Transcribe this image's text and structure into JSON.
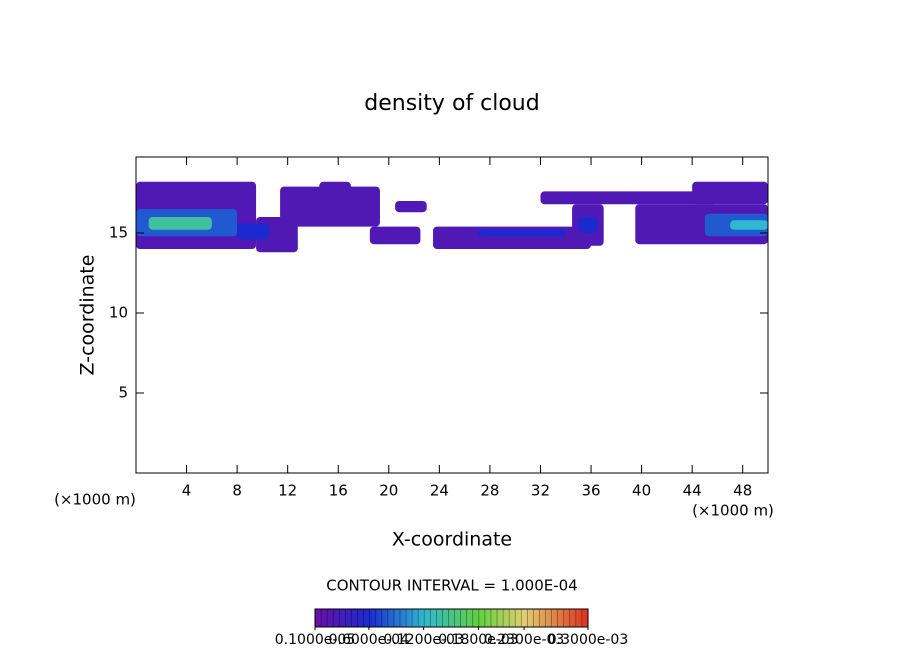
{
  "chart_data": {
    "type": "contour",
    "title": "density of cloud",
    "x_label": "X-coordinate",
    "y_label": "Z-coordinate",
    "x_unit": "(×1000 m)",
    "y_unit": "(×1000 m)",
    "xlim": [
      0,
      50
    ],
    "ylim": [
      0,
      19.75
    ],
    "xticks": [
      4,
      8,
      12,
      16,
      20,
      24,
      28,
      32,
      36,
      40,
      44,
      48
    ],
    "yticks": [
      5,
      10,
      15
    ],
    "contour_interval": "CONTOUR INTERVAL = 1.000E-04",
    "regions": [
      {
        "x": [
          0,
          9.5
        ],
        "z": [
          14,
          18.2
        ],
        "value": 2e-05
      },
      {
        "x": [
          9.5,
          12.8
        ],
        "z": [
          13.8,
          16
        ],
        "value": 2e-05
      },
      {
        "x": [
          11.4,
          19.3
        ],
        "z": [
          15.4,
          17.9
        ],
        "value": 2e-05
      },
      {
        "x": [
          14.5,
          17
        ],
        "z": [
          17.5,
          18.2
        ],
        "value": 2e-05
      },
      {
        "x": [
          18.5,
          22.5
        ],
        "z": [
          14.3,
          15.4
        ],
        "value": 2e-05
      },
      {
        "x": [
          20.5,
          23
        ],
        "z": [
          16.3,
          17
        ],
        "value": 2e-05
      },
      {
        "x": [
          23.5,
          36
        ],
        "z": [
          14,
          15.4
        ],
        "value": 2e-05
      },
      {
        "x": [
          32,
          46
        ],
        "z": [
          16.8,
          17.6
        ],
        "value": 2e-05
      },
      {
        "x": [
          34.5,
          37
        ],
        "z": [
          14.2,
          16.8
        ],
        "value": 2e-05
      },
      {
        "x": [
          39.5,
          50
        ],
        "z": [
          14.3,
          16.8
        ],
        "value": 2e-05
      },
      {
        "x": [
          44,
          50
        ],
        "z": [
          16.8,
          18.2
        ],
        "value": 2e-05
      },
      {
        "x": [
          0,
          8
        ],
        "z": [
          14.8,
          16.5
        ],
        "value": 8e-05
      },
      {
        "x": [
          8,
          10.5
        ],
        "z": [
          14.6,
          15.6
        ],
        "value": 6e-05
      },
      {
        "x": [
          27,
          34
        ],
        "z": [
          14.8,
          15.2
        ],
        "value": 6e-05
      },
      {
        "x": [
          35,
          36.5
        ],
        "z": [
          15,
          16
        ],
        "value": 6e-05
      },
      {
        "x": [
          45,
          50
        ],
        "z": [
          14.8,
          16.2
        ],
        "value": 8e-05
      },
      {
        "x": [
          1,
          6
        ],
        "z": [
          15.2,
          16
        ],
        "value": 0.00014
      },
      {
        "x": [
          47,
          50
        ],
        "z": [
          15.2,
          15.8
        ],
        "value": 0.00012
      }
    ],
    "colorbar": {
      "ticks": [
        {
          "value": 1e-06,
          "label": "0.1000e-05"
        },
        {
          "value": 6e-05,
          "label": "0.6000e-04"
        },
        {
          "value": 0.00012,
          "label": "0.1200e-03"
        },
        {
          "value": 0.00018,
          "label": "0.1800e-03"
        },
        {
          "value": 0.00023,
          "label": "0.2300e-03"
        },
        {
          "value": 0.0003,
          "label": "0.3000e-03"
        }
      ],
      "colors": [
        "#6a10a8",
        "#1a2ad0",
        "#30b8d0",
        "#60d040",
        "#e0d070",
        "#e03020"
      ]
    }
  }
}
